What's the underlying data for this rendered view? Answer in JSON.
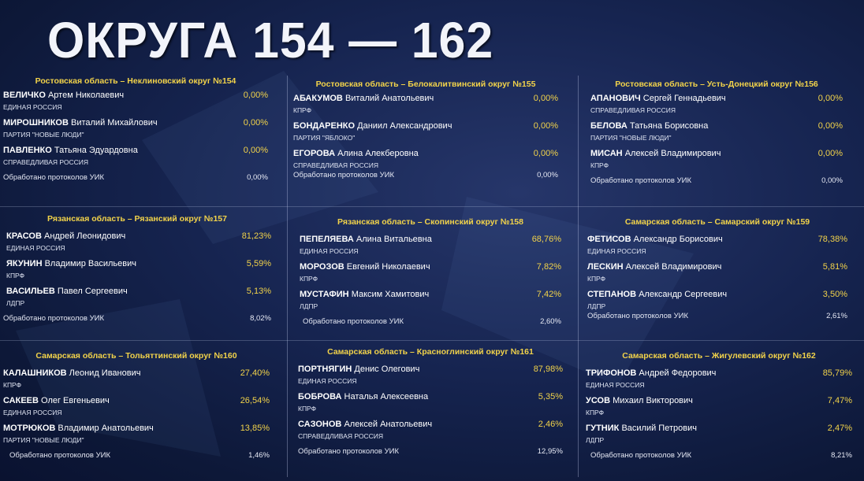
{
  "title": "ОКРУГА 154 — 162",
  "processed_label": "Обработано протоколов УИК",
  "panels": [
    {
      "header": "Ростовская область – Неклиновский округ №154",
      "candidates": [
        {
          "surname": "ВЕЛИЧКО",
          "given": "Артем Николаевич",
          "pct": "0,00%",
          "party": "ЕДИНАЯ РОССИЯ"
        },
        {
          "surname": "МИРОШНИКОВ",
          "given": "Виталий Михайлович",
          "pct": "0,00%",
          "party": "ПАРТИЯ \"НОВЫЕ ЛЮДИ\""
        },
        {
          "surname": "ПАВЛЕНКО",
          "given": "Татьяна Эдуардовна",
          "pct": "0,00%",
          "party": "СПРАВЕДЛИВАЯ РОССИЯ"
        }
      ],
      "processed": "0,00%"
    },
    {
      "header": "Ростовская область – Белокалитвинский округ №155",
      "candidates": [
        {
          "surname": "АБАКУМОВ",
          "given": "Виталий Анатольевич",
          "pct": "0,00%",
          "party": "КПРФ"
        },
        {
          "surname": "БОНДАРЕНКО",
          "given": "Даниил Александрович",
          "pct": "0,00%",
          "party": "ПАРТИЯ \"ЯБЛОКО\""
        },
        {
          "surname": "ЕГОРОВА",
          "given": "Алина Алекберовна",
          "pct": "0,00%",
          "party": "СПРАВЕДЛИВАЯ РОССИЯ"
        }
      ],
      "processed": "0,00%"
    },
    {
      "header": "Ростовская область – Усть-Донецкий округ №156",
      "candidates": [
        {
          "surname": "АПАНОВИЧ",
          "given": "Сергей Геннадьевич",
          "pct": "0,00%",
          "party": "СПРАВЕДЛИВАЯ РОССИЯ"
        },
        {
          "surname": "БЕЛОВА",
          "given": "Татьяна Борисовна",
          "pct": "0,00%",
          "party": "ПАРТИЯ \"НОВЫЕ ЛЮДИ\""
        },
        {
          "surname": "МИСАН",
          "given": "Алексей Владимирович",
          "pct": "0,00%",
          "party": "КПРФ"
        }
      ],
      "processed": "0,00%"
    },
    {
      "header": "Рязанская область – Рязанский округ №157",
      "candidates": [
        {
          "surname": "КРАСОВ",
          "given": "Андрей Леонидович",
          "pct": "81,23%",
          "party": "ЕДИНАЯ РОССИЯ"
        },
        {
          "surname": "ЯКУНИН",
          "given": "Владимир Васильевич",
          "pct": "5,59%",
          "party": "КПРФ"
        },
        {
          "surname": "ВАСИЛЬЕВ",
          "given": "Павел Сергеевич",
          "pct": "5,13%",
          "party": "ЛДПР"
        }
      ],
      "processed": "8,02%"
    },
    {
      "header": "Рязанская область – Скопинский округ №158",
      "candidates": [
        {
          "surname": "ПЕПЕЛЯЕВА",
          "given": "Алина Витальевна",
          "pct": "68,76%",
          "party": "ЕДИНАЯ РОССИЯ"
        },
        {
          "surname": "МОРОЗОВ",
          "given": "Евгений Николаевич",
          "pct": "7,82%",
          "party": "КПРФ"
        },
        {
          "surname": "МУСТАФИН",
          "given": "Максим Хамитович",
          "pct": "7,42%",
          "party": "ЛДПР"
        }
      ],
      "processed": "2,60%"
    },
    {
      "header": "Самарская область – Самарский округ №159",
      "candidates": [
        {
          "surname": "ФЕТИСОВ",
          "given": "Александр Борисович",
          "pct": "78,38%",
          "party": "ЕДИНАЯ РОССИЯ"
        },
        {
          "surname": "ЛЕСКИН",
          "given": "Алексей Владимирович",
          "pct": "5,81%",
          "party": "КПРФ"
        },
        {
          "surname": "СТЕПАНОВ",
          "given": "Александр Сергеевич",
          "pct": "3,50%",
          "party": "ЛДПР"
        }
      ],
      "processed": "2,61%"
    },
    {
      "header": "Самарская область – Тольяттинский округ №160",
      "candidates": [
        {
          "surname": "КАЛАШНИКОВ",
          "given": "Леонид Иванович",
          "pct": "27,40%",
          "party": "КПРФ"
        },
        {
          "surname": "САКЕЕВ",
          "given": "Олег Евгеньевич",
          "pct": "26,54%",
          "party": "ЕДИНАЯ РОССИЯ"
        },
        {
          "surname": "МОТРЮКОВ",
          "given": "Владимир Анатольевич",
          "pct": "13,85%",
          "party": "ПАРТИЯ \"НОВЫЕ ЛЮДИ\""
        }
      ],
      "processed": "1,46%"
    },
    {
      "header": "Самарская область – Красноглинский округ №161",
      "candidates": [
        {
          "surname": "ПОРТНЯГИН",
          "given": "Денис Олегович",
          "pct": "87,98%",
          "party": "ЕДИНАЯ РОССИЯ"
        },
        {
          "surname": "БОБРОВА",
          "given": "Наталья Алексеевна",
          "pct": "5,35%",
          "party": "КПРФ"
        },
        {
          "surname": "САЗОНОВ",
          "given": "Алексей Анатольевич",
          "pct": "2,46%",
          "party": "СПРАВЕДЛИВАЯ РОССИЯ"
        }
      ],
      "processed": "12,95%"
    },
    {
      "header": "Самарская область – Жигулевский округ №162",
      "candidates": [
        {
          "surname": "ТРИФОНОВ",
          "given": "Андрей Федорович",
          "pct": "85,79%",
          "party": "ЕДИНАЯ РОССИЯ"
        },
        {
          "surname": "УСОВ",
          "given": "Михаил Викторович",
          "pct": "7,47%",
          "party": "КПРФ"
        },
        {
          "surname": "ГУТНИК",
          "given": "Василий Петрович",
          "pct": "2,47%",
          "party": "ЛДПР"
        }
      ],
      "processed": "8,21%"
    }
  ]
}
